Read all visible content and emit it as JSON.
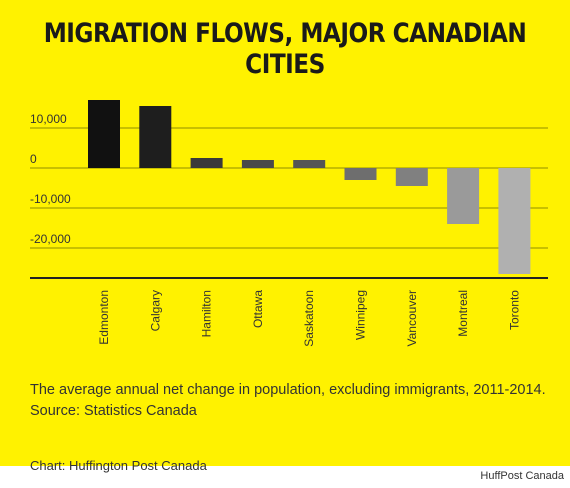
{
  "header": {
    "title": "MIGRATION FLOWS, MAJOR CANADIAN CITIES"
  },
  "chart_data": {
    "type": "bar",
    "title": "MIGRATION FLOWS, MAJOR CANADIAN CITIES",
    "categories": [
      "Edmonton",
      "Calgary",
      "Hamilton",
      "Ottawa",
      "Saskatoon",
      "Winnipeg",
      "Vancouver",
      "Montreal",
      "Toronto"
    ],
    "values": [
      17000,
      15500,
      2500,
      2000,
      2000,
      -3000,
      -4500,
      -14000,
      -26500
    ],
    "yticks": [
      10000,
      0,
      -10000,
      -20000
    ],
    "ytick_labels": [
      "10,000",
      "0",
      "-10,000",
      "-20,000"
    ],
    "ylim": [
      -27500,
      20000
    ],
    "grid": true,
    "colors": [
      "#111111",
      "#1e1e1e",
      "#3a3a3a",
      "#4a4a4a",
      "#555555",
      "#6e6e6e",
      "#808080",
      "#9a9a9a",
      "#b0b0b0"
    ],
    "axis_color": "#222222",
    "gridline_color": "#6b6b00"
  },
  "notes": {
    "caption_line1": "The average annual net change in population, excluding immigrants, 2011-2014.",
    "caption_line2": "Source: Statistics Canada",
    "credit": "Chart: Huffington Post Canada",
    "watermark": "HuffPost Canada"
  },
  "colors": {
    "background": "#fff200",
    "text": "#1a1a1a"
  }
}
